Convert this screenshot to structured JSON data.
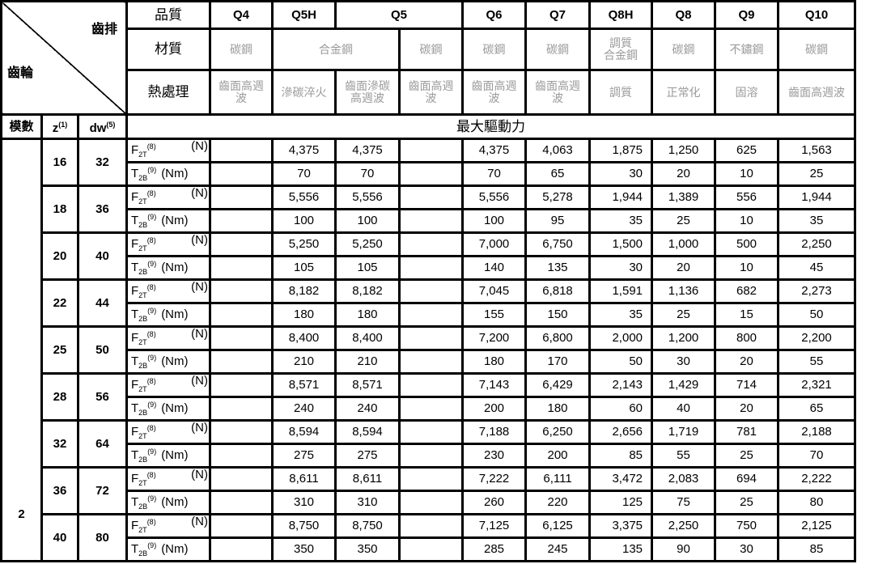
{
  "corner": {
    "top_right": "齒排",
    "bottom_left": "齒輪"
  },
  "row_labels": {
    "quality": "品質",
    "material": "材質",
    "heat": "熱處理"
  },
  "quality": [
    "Q4",
    "Q5H",
    "Q5",
    "Q6",
    "Q7",
    "Q8H",
    "Q8",
    "Q9",
    "Q10"
  ],
  "material": [
    "碳鋼",
    "合金鋼",
    "碳鋼",
    "碳鋼",
    "碳鋼",
    "調質\n合金鋼",
    "碳鋼",
    "不鏽鋼",
    "碳鋼"
  ],
  "heat": [
    "齒面高週波",
    "滲碳淬火",
    "齒面滲碳高週波",
    "齒面高週波",
    "齒面高週波",
    "齒面高週波",
    "調質",
    "正常化",
    "固溶",
    "齒面高週波"
  ],
  "sub_header": {
    "module": "模數",
    "z": "z",
    "z_sup": "(1)",
    "dw": "dw",
    "dw_sup": "(5)",
    "title": "最大驅動力"
  },
  "labels": {
    "F": {
      "sym": "F",
      "sub": "2T",
      "sup": "(8)",
      "unit": "(N)"
    },
    "T": {
      "sym": "T",
      "sub": "2B",
      "sup": "(9)",
      "unit": "(Nm)"
    }
  },
  "module": "2",
  "rows": [
    {
      "z": "16",
      "dw": "32",
      "F": [
        "",
        "4,375",
        "4,375",
        "",
        "4,375",
        "4,063",
        "1,875",
        "1,250",
        "625",
        "1,563"
      ],
      "T": [
        "",
        "70",
        "70",
        "",
        "70",
        "65",
        "30",
        "20",
        "10",
        "25"
      ]
    },
    {
      "z": "18",
      "dw": "36",
      "F": [
        "",
        "5,556",
        "5,556",
        "",
        "5,556",
        "5,278",
        "1,944",
        "1,389",
        "556",
        "1,944"
      ],
      "T": [
        "",
        "100",
        "100",
        "",
        "100",
        "95",
        "35",
        "25",
        "10",
        "35"
      ]
    },
    {
      "z": "20",
      "dw": "40",
      "F": [
        "",
        "5,250",
        "5,250",
        "",
        "7,000",
        "6,750",
        "1,500",
        "1,000",
        "500",
        "2,250"
      ],
      "T": [
        "",
        "105",
        "105",
        "",
        "140",
        "135",
        "30",
        "20",
        "10",
        "45"
      ]
    },
    {
      "z": "22",
      "dw": "44",
      "F": [
        "",
        "8,182",
        "8,182",
        "",
        "7,045",
        "6,818",
        "1,591",
        "1,136",
        "682",
        "2,273"
      ],
      "T": [
        "",
        "180",
        "180",
        "",
        "155",
        "150",
        "35",
        "25",
        "15",
        "50"
      ]
    },
    {
      "z": "25",
      "dw": "50",
      "F": [
        "",
        "8,400",
        "8,400",
        "",
        "7,200",
        "6,800",
        "2,000",
        "1,200",
        "800",
        "2,200"
      ],
      "T": [
        "",
        "210",
        "210",
        "",
        "180",
        "170",
        "50",
        "30",
        "20",
        "55"
      ]
    },
    {
      "z": "28",
      "dw": "56",
      "F": [
        "",
        "8,571",
        "8,571",
        "",
        "7,143",
        "6,429",
        "2,143",
        "1,429",
        "714",
        "2,321"
      ],
      "T": [
        "",
        "240",
        "240",
        "",
        "200",
        "180",
        "60",
        "40",
        "20",
        "65"
      ]
    },
    {
      "z": "32",
      "dw": "64",
      "F": [
        "",
        "8,594",
        "8,594",
        "",
        "7,188",
        "6,250",
        "2,656",
        "1,719",
        "781",
        "2,188"
      ],
      "T": [
        "",
        "275",
        "275",
        "",
        "230",
        "200",
        "85",
        "55",
        "25",
        "70"
      ]
    },
    {
      "z": "36",
      "dw": "72",
      "F": [
        "",
        "8,611",
        "8,611",
        "",
        "7,222",
        "6,111",
        "3,472",
        "2,083",
        "694",
        "2,222"
      ],
      "T": [
        "",
        "310",
        "310",
        "",
        "260",
        "220",
        "125",
        "75",
        "25",
        "80"
      ]
    },
    {
      "z": "40",
      "dw": "80",
      "F": [
        "",
        "8,750",
        "8,750",
        "",
        "7,125",
        "6,125",
        "3,375",
        "2,250",
        "750",
        "2,125"
      ],
      "T": [
        "",
        "350",
        "350",
        "",
        "285",
        "245",
        "135",
        "90",
        "30",
        "85"
      ]
    }
  ]
}
